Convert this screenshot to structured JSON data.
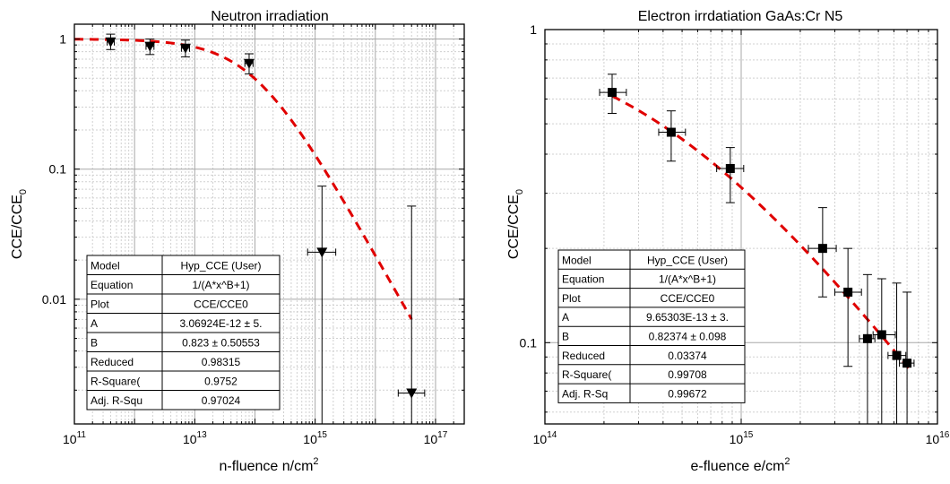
{
  "chart_data": [
    {
      "type": "scatter",
      "title": "Neutron irradiation",
      "xlabel": "n-fluence n/cm",
      "xlabel_sup": "2",
      "ylabel": "CCE/CCE",
      "ylabel_sub": "0",
      "x_scale": "log",
      "y_scale": "log",
      "xlim": [
        100000000000.0,
        3e+17
      ],
      "ylim": [
        0.0011,
        1.3
      ],
      "x_ticks": [
        {
          "value": 100000000000.0,
          "base": "10",
          "exp": "11"
        },
        {
          "value": 10000000000000.0,
          "base": "10",
          "exp": "13"
        },
        {
          "value": 1000000000000000.0,
          "base": "10",
          "exp": "15"
        },
        {
          "value": 1e+17,
          "base": "10",
          "exp": "17"
        }
      ],
      "y_ticks": [
        {
          "value": 1,
          "label": "1"
        },
        {
          "value": 0.1,
          "label": "0.1"
        },
        {
          "value": 0.01,
          "label": "0.01"
        }
      ],
      "grid": true,
      "marker": "triangle-down",
      "points": [
        {
          "x": 400000000000.0,
          "y": 0.95,
          "y_lo": 0.83,
          "y_hi": 1.09,
          "x_lo": 350000000000.0,
          "x_hi": 460000000000.0
        },
        {
          "x": 1800000000000.0,
          "y": 0.88,
          "y_lo": 0.76,
          "y_hi": 1.0,
          "x_lo": 1550000000000.0,
          "x_hi": 2100000000000.0
        },
        {
          "x": 7000000000000.0,
          "y": 0.85,
          "y_lo": 0.73,
          "y_hi": 0.98,
          "x_lo": 6000000000000.0,
          "x_hi": 8200000000000.0
        },
        {
          "x": 80000000000000.0,
          "y": 0.65,
          "y_lo": 0.54,
          "y_hi": 0.77,
          "x_lo": 68000000000000.0,
          "x_hi": 93000000000000.0
        },
        {
          "x": 1300000000000000.0,
          "y": 0.023,
          "y_lo": 0.0011,
          "y_hi": 0.074,
          "x_lo": 750000000000000.0,
          "x_hi": 2200000000000000.0
        },
        {
          "x": 4e+16,
          "y": 0.0019,
          "y_lo": 0.0011,
          "y_hi": 0.052,
          "x_lo": 2.4e+16,
          "x_hi": 6.6e+16
        }
      ],
      "fit": {
        "A": 3.06924e-12,
        "B": 0.823,
        "x_from": 100000000000.0,
        "x_to": 4e+16,
        "color": "#e00000",
        "dashed": true
      },
      "fit_table": [
        [
          "Model",
          "Hyp_CCE (User)"
        ],
        [
          "Equation",
          "1/(A*x^B+1)"
        ],
        [
          "Plot",
          "CCE/CCE0"
        ],
        [
          "A",
          "3.06924E-12 ± 5."
        ],
        [
          "B",
          "0.823 ± 0.50553"
        ],
        [
          "Reduced",
          "0.98315"
        ],
        [
          "R-Square(",
          "0.9752"
        ],
        [
          "Adj. R-Squ",
          "0.97024"
        ]
      ]
    },
    {
      "type": "scatter",
      "title": "Electron irrdatiation GaAs:Cr N5",
      "xlabel": "e-fluence e/cm",
      "xlabel_sup": "2",
      "ylabel": "CCE/CCE",
      "ylabel_sub": "0",
      "x_scale": "log",
      "y_scale": "log",
      "xlim": [
        100000000000000.0,
        1e+16
      ],
      "ylim": [
        0.055,
        1.0
      ],
      "x_ticks": [
        {
          "value": 100000000000000.0,
          "base": "10",
          "exp": "14"
        },
        {
          "value": 1000000000000000.0,
          "base": "10",
          "exp": "15"
        },
        {
          "value": 1e+16,
          "base": "10",
          "exp": "16"
        }
      ],
      "y_ticks": [
        {
          "value": 1,
          "label": "1"
        },
        {
          "value": 0.1,
          "label": "0.1"
        }
      ],
      "grid": true,
      "marker": "square",
      "points": [
        {
          "x": 220000000000000.0,
          "y": 0.63,
          "y_lo": 0.54,
          "y_hi": 0.72,
          "x_lo": 190000000000000.0,
          "x_hi": 260000000000000.0
        },
        {
          "x": 440000000000000.0,
          "y": 0.47,
          "y_lo": 0.38,
          "y_hi": 0.55,
          "x_lo": 380000000000000.0,
          "x_hi": 520000000000000.0
        },
        {
          "x": 880000000000000.0,
          "y": 0.36,
          "y_lo": 0.28,
          "y_hi": 0.42,
          "x_lo": 750000000000000.0,
          "x_hi": 1030000000000000.0
        },
        {
          "x": 2600000000000000.0,
          "y": 0.2,
          "y_lo": 0.14,
          "y_hi": 0.27,
          "x_lo": 2200000000000000.0,
          "x_hi": 3050000000000000.0
        },
        {
          "x": 3500000000000000.0,
          "y": 0.145,
          "y_lo": 0.084,
          "y_hi": 0.2,
          "x_lo": 3000000000000000.0,
          "x_hi": 4100000000000000.0
        },
        {
          "x": 4400000000000000.0,
          "y": 0.103,
          "y_lo": 0.055,
          "y_hi": 0.165,
          "x_lo": 4000000000000000.0,
          "x_hi": 4800000000000000.0
        },
        {
          "x": 5200000000000000.0,
          "y": 0.106,
          "y_lo": 0.055,
          "y_hi": 0.16,
          "x_lo": 4700000000000000.0,
          "x_hi": 6100000000000000.0
        },
        {
          "x": 6200000000000000.0,
          "y": 0.091,
          "y_lo": 0.055,
          "y_hi": 0.155,
          "x_lo": 5600000000000000.0,
          "x_hi": 6900000000000000.0
        },
        {
          "x": 7000000000000000.0,
          "y": 0.086,
          "y_lo": 0.055,
          "y_hi": 0.145,
          "x_lo": 6400000000000000.0,
          "x_hi": 7600000000000000.0
        }
      ],
      "fit": {
        "A": 9.65303e-13,
        "B": 0.82374,
        "x_from": 220000000000000.0,
        "x_to": 7200000000000000.0,
        "color": "#e00000",
        "dashed": true
      },
      "fit_table": [
        [
          "Model",
          "Hyp_CCE (User)"
        ],
        [
          "Equation",
          "1/(A*x^B+1)"
        ],
        [
          "Plot",
          "CCE/CCE0"
        ],
        [
          "A",
          "9.65303E-13 ± 3."
        ],
        [
          "B",
          "0.82374 ± 0.098"
        ],
        [
          "Reduced",
          "0.03374"
        ],
        [
          "R-Square(",
          "0.99708"
        ],
        [
          "Adj. R-Sq",
          "0.99672"
        ]
      ]
    }
  ]
}
